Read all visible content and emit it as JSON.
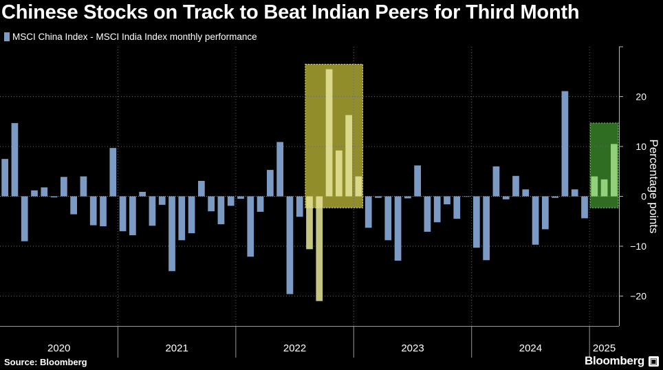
{
  "title": "Chinese Stocks on Track to Beat Indian Peers for Third Month",
  "footer": {
    "source": "Source: Bloomberg",
    "brand": "Bloomberg",
    "brand_icon": "▣"
  },
  "colors": {
    "bar": "#7b9bc4",
    "bar_highlight_yellow": "#e6e69a",
    "bar_highlight_green": "#a6e08c",
    "highlight_yellow": "#c8c43a",
    "highlight_green": "#3c8c2c",
    "text": "#ffffff",
    "grid": "#666666"
  },
  "chart_data": {
    "type": "bar",
    "title": "Chinese Stocks on Track to Beat Indian Peers for Third Month",
    "legend": [
      "MSCI China Index - MSCI India Index monthly performance"
    ],
    "ylabel": "Percentage points",
    "ylim": [
      -26,
      30
    ],
    "yticks": [
      -20,
      -10,
      0,
      10,
      20
    ],
    "years": [
      "2020",
      "2021",
      "2022",
      "2023",
      "2024",
      "2025"
    ],
    "year_boundaries": [
      11.5,
      23.5,
      35.5,
      47.5,
      59.5
    ],
    "x_domain": [
      -0.5,
      62.5
    ],
    "values": [
      7.5,
      14.7,
      -9.0,
      1.2,
      1.8,
      -0.2,
      3.9,
      -3.6,
      4.0,
      -5.8,
      -6.0,
      9.7,
      -7.0,
      -7.8,
      0.9,
      -5.9,
      -1.7,
      -15.0,
      -8.8,
      -7.4,
      3.1,
      -3.0,
      -5.6,
      -1.9,
      -0.5,
      -12.1,
      -3.1,
      5.3,
      10.9,
      -19.6,
      -4.1,
      -10.6,
      -21.0,
      25.5,
      9.2,
      16.3,
      4.0,
      -6.3,
      -0.3,
      -8.8,
      -12.9,
      -0.4,
      6.2,
      -7.1,
      -5.2,
      -1.6,
      -4.5,
      -0.1,
      -10.3,
      -12.8,
      6.0,
      -0.6,
      4.1,
      1.4,
      -9.7,
      -6.6,
      -0.3,
      21.1,
      1.4,
      -4.4,
      4.0,
      3.4,
      10.5
    ],
    "highlights": [
      {
        "name": "yellow",
        "from_index": 31,
        "to_index": 36,
        "y_range": [
          -2.3,
          26.5
        ]
      },
      {
        "name": "green",
        "from_index": 60,
        "to_index": 62,
        "y_range": [
          -2.3,
          14.7
        ]
      }
    ]
  }
}
